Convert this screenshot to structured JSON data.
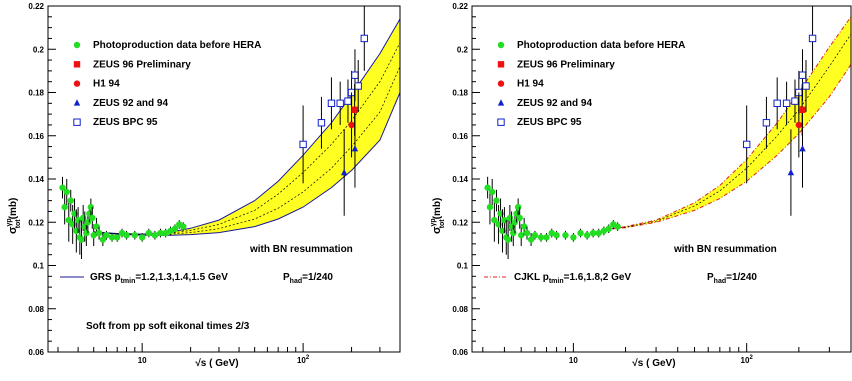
{
  "chart_data": [
    {
      "type": "scatter",
      "panel": "left",
      "xscale": "log",
      "xlim": [
        2.6,
        400
      ],
      "ylim": [
        0.06,
        0.22
      ],
      "ylabel_main": "σ",
      "ylabel_sup": "γp",
      "ylabel_sub": "tot",
      "ylabel_tail": "(mb)",
      "xlabel": "√s ( GeV)",
      "ytick_values": [
        0.06,
        0.08,
        0.1,
        0.12,
        0.14,
        0.16,
        0.18,
        0.2,
        0.22
      ],
      "ytick_labels": [
        "0.06",
        "0.08",
        "0.1",
        "0.12",
        "0.14",
        "0.16",
        "0.18",
        "0.2",
        "0.22"
      ],
      "xtick_major": [
        10,
        100
      ],
      "xtick_labels": [
        {
          "base": "10",
          "exp": ""
        },
        {
          "base": "10",
          "exp": "2"
        }
      ],
      "legend": [
        {
          "label": "Photoproduction data before HERA",
          "marker": "circle",
          "color": "#22dd22"
        },
        {
          "label": "ZEUS 96 Preliminary",
          "marker": "square",
          "color": "#ee1111"
        },
        {
          "label": "H1 94",
          "marker": "circle",
          "color": "#ee1111"
        },
        {
          "label": "ZEUS 92 and 94",
          "marker": "triangle",
          "color": "#1122cc"
        },
        {
          "label": "ZEUS BPC 95",
          "marker": "open-square",
          "color": "#1122cc"
        }
      ],
      "annotation_resum": "with BN resummation",
      "curve_legend": {
        "style": "solid",
        "color": "#1a1a99",
        "prefix": "GRS p",
        "sub": "tmin",
        "values": "=1.2,1.3,1.4,1.5 GeV",
        "phad_prefix": "P",
        "phad_sub": "had",
        "phad_value": "=1/240"
      },
      "annotation_extra": "Soft from pp soft eikonal times 2/3",
      "band": {
        "color": "#ffff22",
        "x": [
          5,
          7,
          10,
          15,
          20,
          30,
          50,
          70,
          100,
          150,
          200,
          300,
          400
        ],
        "lower": [
          0.1155,
          0.1145,
          0.114,
          0.114,
          0.1143,
          0.1152,
          0.118,
          0.1215,
          0.127,
          0.136,
          0.144,
          0.158,
          0.18
        ],
        "upper": [
          0.1155,
          0.1148,
          0.1145,
          0.1155,
          0.1172,
          0.121,
          0.13,
          0.139,
          0.151,
          0.166,
          0.179,
          0.198,
          0.214
        ],
        "inner_lines": [
          [
            0.1155,
            0.1146,
            0.1142,
            0.1145,
            0.1152,
            0.117,
            0.1215,
            0.1265,
            0.134,
            0.145,
            0.155,
            0.171,
            0.192
          ],
          [
            0.1155,
            0.1147,
            0.1144,
            0.115,
            0.1162,
            0.119,
            0.1255,
            0.133,
            0.143,
            0.156,
            0.167,
            0.185,
            0.203
          ]
        ]
      },
      "photoproduction": {
        "x": [
          3.2,
          3.3,
          3.4,
          3.5,
          3.6,
          3.7,
          3.8,
          3.9,
          4.0,
          4.1,
          4.2,
          4.3,
          4.4,
          4.5,
          4.6,
          4.7,
          4.8,
          4.9,
          5.0,
          5.2,
          5.4,
          5.7,
          6.0,
          6.5,
          7.0,
          7.5,
          8.0,
          9.0,
          10.0,
          11.0,
          12.0,
          13.0,
          14.0,
          15.0,
          16.0,
          17.0,
          18.0
        ],
        "y": [
          0.136,
          0.127,
          0.134,
          0.121,
          0.13,
          0.119,
          0.124,
          0.116,
          0.121,
          0.113,
          0.112,
          0.122,
          0.118,
          0.115,
          0.12,
          0.124,
          0.127,
          0.122,
          0.114,
          0.118,
          0.115,
          0.112,
          0.114,
          0.113,
          0.113,
          0.115,
          0.114,
          0.114,
          0.113,
          0.115,
          0.114,
          0.115,
          0.115,
          0.116,
          0.117,
          0.119,
          0.118
        ],
        "err": [
          0.005,
          0.008,
          0.006,
          0.01,
          0.005,
          0.009,
          0.007,
          0.01,
          0.006,
          0.008,
          0.009,
          0.006,
          0.007,
          0.006,
          0.005,
          0.004,
          0.004,
          0.005,
          0.005,
          0.004,
          0.003,
          0.003,
          0.002,
          0.002,
          0.002,
          0.002,
          0.002,
          0.002,
          0.002,
          0.002,
          0.002,
          0.002,
          0.002,
          0.002,
          0.002,
          0.002,
          0.002
        ]
      },
      "zeus96": {
        "x": [
          209
        ],
        "y": [
          0.172
        ],
        "err": [
          0.012
        ]
      },
      "h1_94": {
        "x": [
          200
        ],
        "y": [
          0.165
        ],
        "err": [
          0.015
        ]
      },
      "zeus92_94": {
        "x": [
          180,
          210
        ],
        "y": [
          0.143,
          0.154
        ],
        "err": [
          0.02,
          0.018
        ]
      },
      "zeus_bpc95": {
        "x": [
          100,
          130,
          150,
          170,
          190,
          200,
          210,
          220,
          240
        ],
        "y": [
          0.156,
          0.166,
          0.175,
          0.175,
          0.176,
          0.18,
          0.188,
          0.183,
          0.205
        ],
        "err": [
          0.018,
          0.012,
          0.012,
          0.01,
          0.01,
          0.01,
          0.012,
          0.012,
          0.015
        ]
      }
    },
    {
      "type": "scatter",
      "panel": "right",
      "xscale": "log",
      "xlim": [
        2.6,
        400
      ],
      "ylim": [
        0.06,
        0.22
      ],
      "ylabel_main": "σ",
      "ylabel_sup": "γp",
      "ylabel_sub": "tot",
      "ylabel_tail": "(mb)",
      "xlabel": "√s ( GeV)",
      "ytick_values": [
        0.06,
        0.08,
        0.1,
        0.12,
        0.14,
        0.16,
        0.18,
        0.2,
        0.22
      ],
      "ytick_labels": [
        "0.06",
        "0.08",
        "0.1",
        "0.12",
        "0.14",
        "0.16",
        "0.18",
        "0.2",
        "0.22"
      ],
      "xtick_major": [
        10,
        100
      ],
      "xtick_labels": [
        {
          "base": "10",
          "exp": ""
        },
        {
          "base": "10",
          "exp": "2"
        }
      ],
      "legend": [
        {
          "label": "Photoproduction data before HERA",
          "marker": "circle",
          "color": "#22dd22"
        },
        {
          "label": "ZEUS 96 Preliminary",
          "marker": "square",
          "color": "#ee1111"
        },
        {
          "label": "H1 94",
          "marker": "circle",
          "color": "#ee1111"
        },
        {
          "label": "ZEUS 92 and 94",
          "marker": "triangle",
          "color": "#1122cc"
        },
        {
          "label": "ZEUS BPC 95",
          "marker": "open-square",
          "color": "#1122cc"
        }
      ],
      "annotation_resum": "with BN resummation",
      "curve_legend": {
        "style": "dash-dot",
        "color": "#dd2222",
        "prefix": "CJKL p",
        "sub": "tmin",
        "values": "=1.6,1.8,2 GeV",
        "phad_prefix": "P",
        "phad_sub": "had",
        "phad_value": "=1/240"
      },
      "annotation_extra": "",
      "band": {
        "color": "#ffff22",
        "x": [
          15,
          20,
          30,
          50,
          70,
          100,
          150,
          200,
          300,
          400
        ],
        "lower": [
          0.1165,
          0.1175,
          0.12,
          0.1255,
          0.131,
          0.139,
          0.151,
          0.161,
          0.178,
          0.193
        ],
        "upper": [
          0.1165,
          0.118,
          0.121,
          0.129,
          0.137,
          0.149,
          0.166,
          0.18,
          0.201,
          0.215
        ],
        "inner_lines": [
          [
            0.1165,
            0.1177,
            0.1205,
            0.1275,
            0.1345,
            0.145,
            0.16,
            0.172,
            0.192,
            0.207
          ]
        ]
      },
      "photoproduction": {
        "x": [
          3.2,
          3.3,
          3.4,
          3.5,
          3.6,
          3.7,
          3.8,
          3.9,
          4.0,
          4.1,
          4.2,
          4.3,
          4.4,
          4.5,
          4.6,
          4.7,
          4.8,
          4.9,
          5.0,
          5.2,
          5.4,
          5.7,
          6.0,
          6.5,
          7.0,
          7.5,
          8.0,
          9.0,
          10.0,
          11.0,
          12.0,
          13.0,
          14.0,
          15.0,
          16.0,
          17.0,
          18.0
        ],
        "y": [
          0.136,
          0.127,
          0.134,
          0.121,
          0.13,
          0.119,
          0.124,
          0.116,
          0.121,
          0.113,
          0.112,
          0.122,
          0.118,
          0.115,
          0.12,
          0.124,
          0.127,
          0.122,
          0.114,
          0.118,
          0.115,
          0.112,
          0.114,
          0.113,
          0.113,
          0.115,
          0.114,
          0.114,
          0.113,
          0.115,
          0.114,
          0.115,
          0.115,
          0.116,
          0.117,
          0.119,
          0.118
        ],
        "err": [
          0.005,
          0.008,
          0.006,
          0.01,
          0.005,
          0.009,
          0.007,
          0.01,
          0.006,
          0.008,
          0.009,
          0.006,
          0.007,
          0.006,
          0.005,
          0.004,
          0.004,
          0.005,
          0.005,
          0.004,
          0.003,
          0.003,
          0.002,
          0.002,
          0.002,
          0.002,
          0.002,
          0.002,
          0.002,
          0.002,
          0.002,
          0.002,
          0.002,
          0.002,
          0.002,
          0.002,
          0.002
        ]
      },
      "zeus96": {
        "x": [
          209
        ],
        "y": [
          0.172
        ],
        "err": [
          0.012
        ]
      },
      "h1_94": {
        "x": [
          200
        ],
        "y": [
          0.165
        ],
        "err": [
          0.015
        ]
      },
      "zeus92_94": {
        "x": [
          180,
          210
        ],
        "y": [
          0.143,
          0.154
        ],
        "err": [
          0.02,
          0.018
        ]
      },
      "zeus_bpc95": {
        "x": [
          100,
          130,
          150,
          170,
          190,
          200,
          210,
          220,
          240
        ],
        "y": [
          0.156,
          0.166,
          0.175,
          0.175,
          0.176,
          0.18,
          0.188,
          0.183,
          0.205
        ],
        "err": [
          0.018,
          0.012,
          0.012,
          0.01,
          0.01,
          0.01,
          0.012,
          0.012,
          0.015
        ]
      }
    }
  ]
}
